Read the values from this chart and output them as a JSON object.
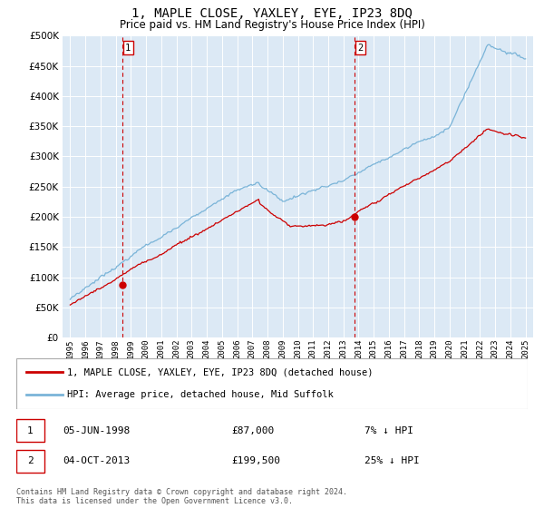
{
  "title": "1, MAPLE CLOSE, YAXLEY, EYE, IP23 8DQ",
  "subtitle": "Price paid vs. HM Land Registry's House Price Index (HPI)",
  "title_fontsize": 10,
  "subtitle_fontsize": 8.5,
  "bg_color": "#dce9f5",
  "fig_bg_color": "#ffffff",
  "line_color_hpi": "#7ab4d8",
  "line_color_price": "#cc0000",
  "ylim": [
    0,
    500000
  ],
  "yticks": [
    0,
    50000,
    100000,
    150000,
    200000,
    250000,
    300000,
    350000,
    400000,
    450000,
    500000
  ],
  "xlim_start": 1994.5,
  "xlim_end": 2025.5,
  "sale1_date": 1998.43,
  "sale1_price": 87000,
  "sale1_label": "1",
  "sale1_note": "05-JUN-1998",
  "sale1_amount": "£87,000",
  "sale1_hpi": "7% ↓ HPI",
  "sale2_date": 2013.75,
  "sale2_price": 199500,
  "sale2_label": "2",
  "sale2_note": "04-OCT-2013",
  "sale2_amount": "£199,500",
  "sale2_hpi": "25% ↓ HPI",
  "legend_label1": "1, MAPLE CLOSE, YAXLEY, EYE, IP23 8DQ (detached house)",
  "legend_label2": "HPI: Average price, detached house, Mid Suffolk",
  "footer": "Contains HM Land Registry data © Crown copyright and database right 2024.\nThis data is licensed under the Open Government Licence v3.0."
}
